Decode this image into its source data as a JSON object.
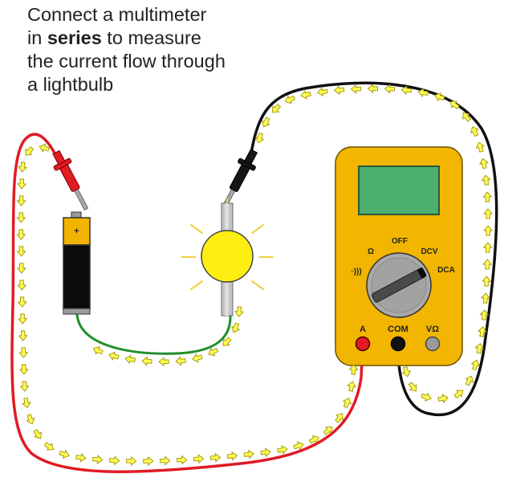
{
  "caption": {
    "line1": "Connect a multimeter",
    "line2_prefix": "in ",
    "line2_bold": "series",
    "line2_suffix": " to measure",
    "line3": "the current flow through",
    "line4": "a lightbulb"
  },
  "battery": {
    "terminal_sign": "+"
  },
  "multimeter": {
    "dial_labels": {
      "off": "OFF",
      "ohm": "Ω",
      "continuity": "·)))",
      "dcv": "DCV",
      "dca": "DCA"
    },
    "jack_labels": {
      "amps": "A",
      "common": "COM",
      "volt_ohm": "VΩ"
    },
    "selected_mode": "DCA"
  },
  "colors": {
    "red_wire": "#e01b24",
    "black_wire": "#111111",
    "green_wire": "#1f8f2a",
    "meter_body": "#f2b600",
    "screen": "#4caf6e",
    "bulb": "#ffee11",
    "arrow_fill": "#ffff55",
    "arrow_stroke": "#a09000"
  }
}
